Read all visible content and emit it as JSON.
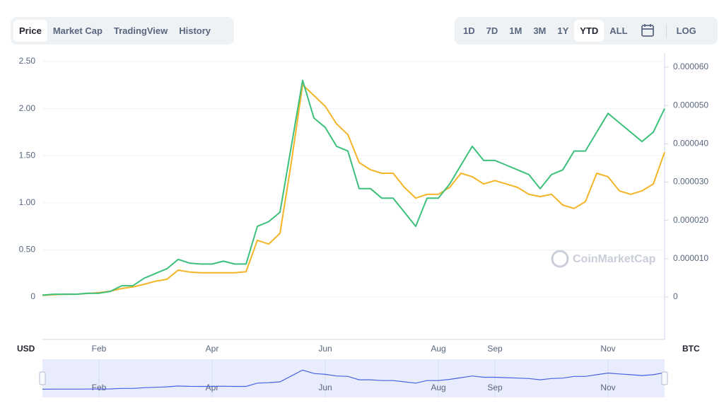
{
  "tabs": [
    {
      "label": "Price",
      "selected": true
    },
    {
      "label": "Market Cap",
      "selected": false
    },
    {
      "label": "TradingView",
      "selected": false
    },
    {
      "label": "History",
      "selected": false
    }
  ],
  "range_buttons": [
    {
      "label": "1D",
      "selected": false
    },
    {
      "label": "7D",
      "selected": false
    },
    {
      "label": "1M",
      "selected": false
    },
    {
      "label": "3M",
      "selected": false
    },
    {
      "label": "1Y",
      "selected": false
    },
    {
      "label": "YTD",
      "selected": true
    },
    {
      "label": "ALL",
      "selected": false
    }
  ],
  "log_button": "LOG",
  "watermark": "CoinMarketCap",
  "chart_data": {
    "type": "line",
    "y_label": "USD",
    "y2_label": "BTC",
    "categories": [
      null,
      null,
      null,
      null,
      null,
      "Feb",
      null,
      null,
      null,
      null,
      null,
      null,
      null,
      null,
      null,
      "Apr",
      null,
      null,
      null,
      null,
      null,
      null,
      null,
      null,
      null,
      "Jun",
      null,
      null,
      null,
      null,
      null,
      null,
      null,
      null,
      null,
      "Aug",
      null,
      null,
      null,
      null,
      "Sep",
      null,
      null,
      null,
      null,
      null,
      null,
      null,
      null,
      null,
      "Nov",
      null,
      null,
      null,
      null,
      null
    ],
    "series": [
      {
        "color": "#f3b426",
        "axis": "y2",
        "values": [
          4e-07,
          6e-07,
          7e-07,
          7e-07,
          9e-07,
          1.1e-06,
          1.5e-06,
          2.2e-06,
          2.6e-06,
          3.3e-06,
          4.1e-06,
          4.6e-06,
          7e-06,
          6.5e-06,
          6.3e-06,
          6.3e-06,
          6.3e-06,
          6.3e-06,
          6.6e-06,
          1.48e-05,
          1.38e-05,
          1.66e-05,
          3.51e-05,
          5.54e-05,
          5.26e-05,
          4.98e-05,
          4.52e-05,
          4.24e-05,
          3.51e-05,
          3.32e-05,
          3.23e-05,
          3.23e-05,
          2.86e-05,
          2.58e-05,
          2.68e-05,
          2.68e-05,
          2.86e-05,
          3.23e-05,
          3.14e-05,
          2.95e-05,
          3.04e-05,
          2.95e-05,
          2.86e-05,
          2.68e-05,
          2.62e-05,
          2.68e-05,
          2.4e-05,
          2.31e-05,
          2.49e-05,
          3.23e-05,
          3.14e-05,
          2.77e-05,
          2.68e-05,
          2.77e-05,
          2.95e-05,
          3.78e-05
        ]
      },
      {
        "color": "#3cc07c",
        "values": [
          0.02,
          0.03,
          0.03,
          0.03,
          0.04,
          0.04,
          0.06,
          0.12,
          0.12,
          0.2,
          0.25,
          0.3,
          0.4,
          0.36,
          0.35,
          0.35,
          0.38,
          0.35,
          0.35,
          0.75,
          0.8,
          0.9,
          1.6,
          2.3,
          1.9,
          1.8,
          1.6,
          1.55,
          1.15,
          1.15,
          1.05,
          1.05,
          0.9,
          0.75,
          1.05,
          1.05,
          1.2,
          1.4,
          1.6,
          1.45,
          1.45,
          1.4,
          1.35,
          1.3,
          1.15,
          1.3,
          1.35,
          1.55,
          1.55,
          1.75,
          1.95,
          1.85,
          1.75,
          1.65,
          1.75,
          2.0
        ]
      }
    ],
    "ylim": [
      -0.45,
      2.59
    ],
    "yticks": [
      0,
      {
        "value": 0.5,
        "label": "0.50"
      },
      {
        "value": 1,
        "label": "1.00"
      },
      {
        "value": 1.5,
        "label": "1.50"
      },
      {
        "value": 2,
        "label": "2.00"
      },
      {
        "value": 2.5,
        "label": "2.50"
      }
    ],
    "y2lim": [
      -1.11e-05,
      6.37e-05
    ],
    "y2ticks": [
      0,
      {
        "value": 1e-05,
        "label": "0.000010"
      },
      {
        "value": 2e-05,
        "label": "0.000020"
      },
      {
        "value": 3e-05,
        "label": "0.000030"
      },
      {
        "value": 4e-05,
        "label": "0.000040"
      },
      {
        "value": 5e-05,
        "label": "0.000050"
      },
      {
        "value": 6e-05,
        "label": "0.000060"
      }
    ],
    "grid": true
  }
}
